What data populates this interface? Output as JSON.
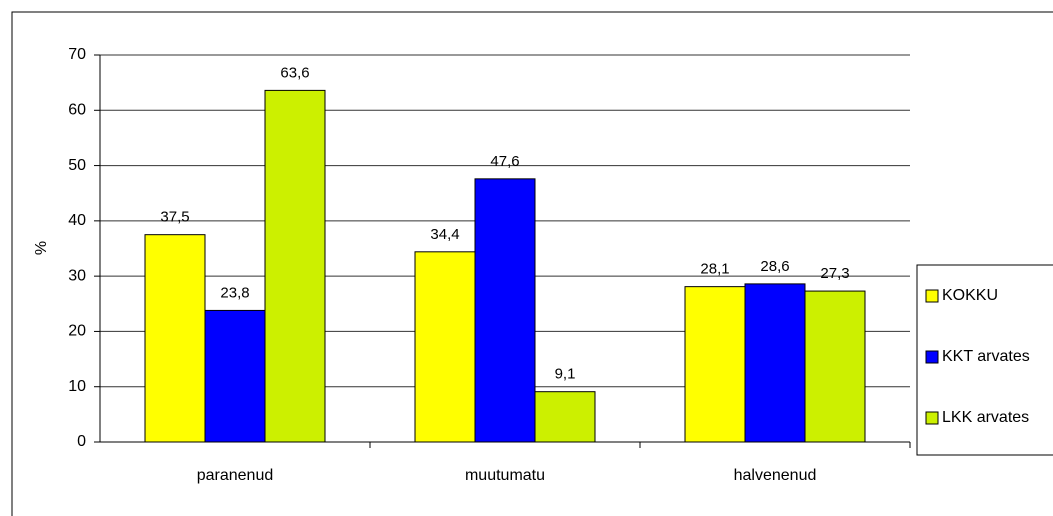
{
  "chart_data": {
    "type": "bar",
    "y_label": "%",
    "categories": [
      "paranenud",
      "muutumatu",
      "halvenenud"
    ],
    "series": [
      {
        "name": "KOKKU",
        "color": "#ffff00",
        "values": [
          37.5,
          34.4,
          28.1
        ],
        "value_labels": [
          "37,5",
          "34,4",
          "28,1"
        ]
      },
      {
        "name": "KKT arvates",
        "color": "#0000ff",
        "values": [
          23.8,
          47.6,
          28.6
        ],
        "value_labels": [
          "23,8",
          "47,6",
          "28,6"
        ]
      },
      {
        "name": "LKK arvates",
        "color": "#ccf000",
        "values": [
          63.6,
          9.1,
          27.3
        ],
        "value_labels": [
          "63,6",
          "9,1",
          "27,3"
        ]
      }
    ],
    "ylim": [
      0,
      70
    ],
    "yticks": [
      0,
      10,
      20,
      30,
      40,
      50,
      60,
      70
    ],
    "grid": true,
    "legend": "right"
  }
}
